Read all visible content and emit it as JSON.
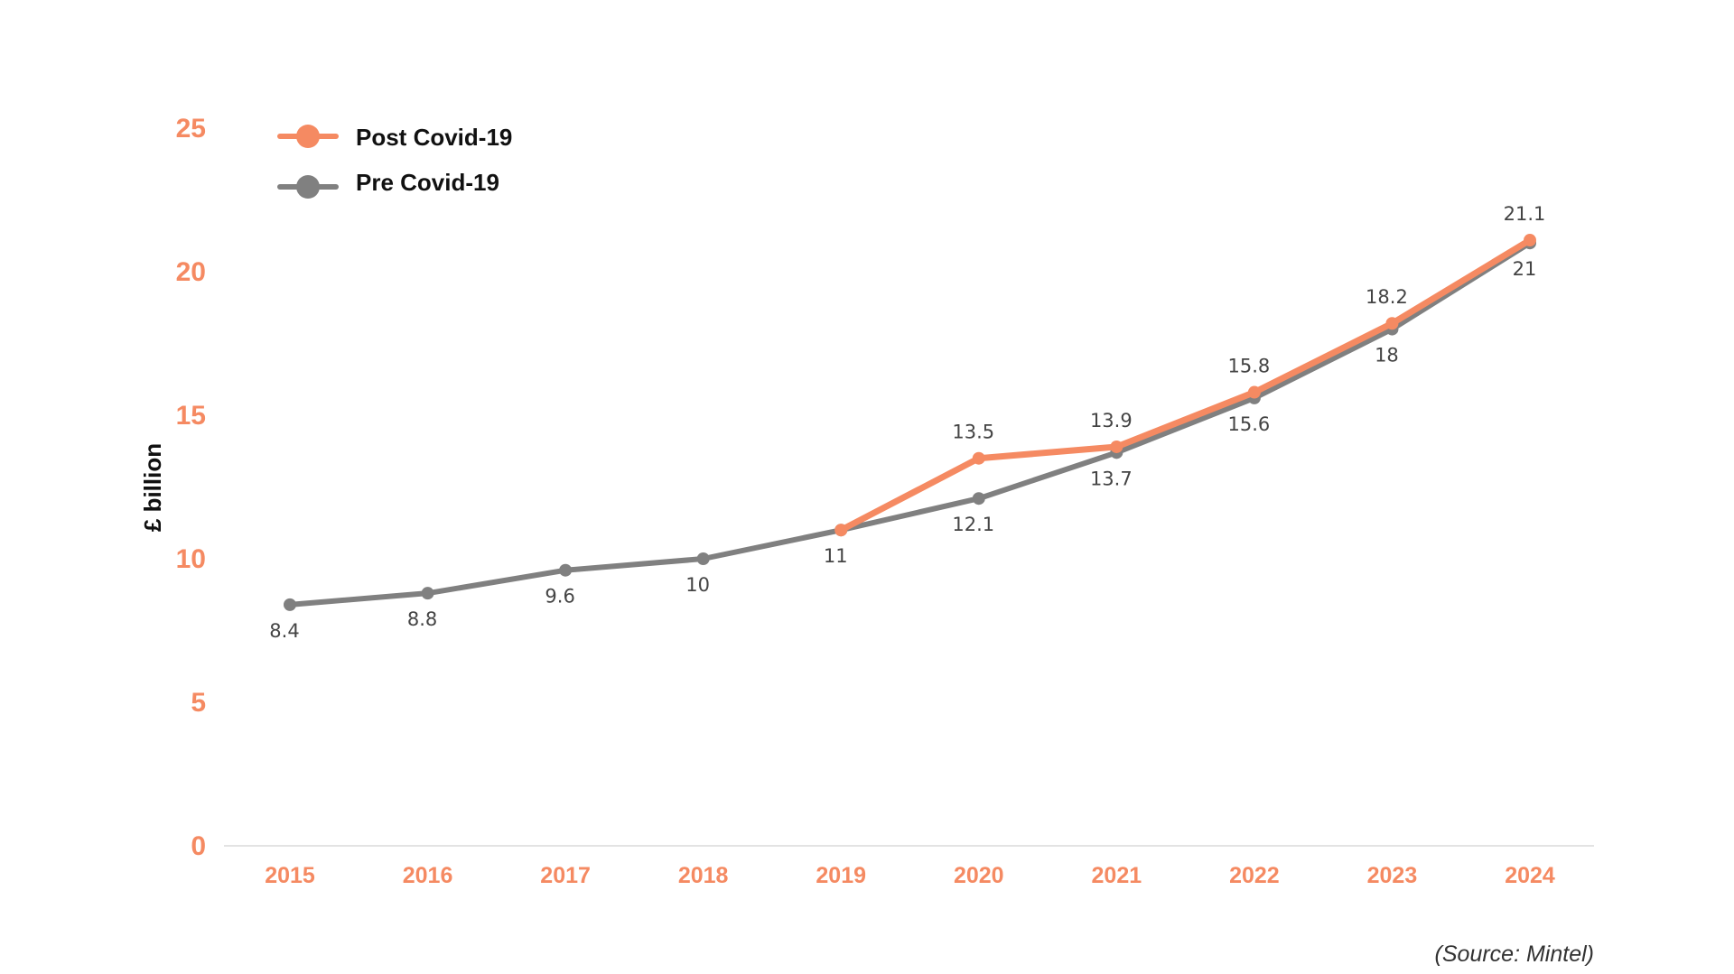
{
  "chart_data": {
    "type": "line",
    "ylabel": "£ billion",
    "ylim": [
      0,
      25
    ],
    "yticks": [
      0,
      5,
      10,
      15,
      20,
      25
    ],
    "categories": [
      "2015",
      "2016",
      "2017",
      "2018",
      "2019",
      "2020",
      "2021",
      "2022",
      "2023",
      "2024"
    ],
    "series": [
      {
        "name": "Post Covid-19",
        "color": "#f58a62",
        "values": [
          null,
          null,
          null,
          null,
          11,
          13.5,
          13.9,
          15.8,
          18.2,
          21.1
        ],
        "labels": [
          "",
          "",
          "",
          "",
          "",
          "13.5",
          "13.9",
          "15.8",
          "18.2",
          "21.1"
        ]
      },
      {
        "name": "Pre Covid-19",
        "color": "#808080",
        "values": [
          8.4,
          8.8,
          9.6,
          10,
          11,
          12.1,
          13.7,
          15.6,
          18,
          21
        ],
        "labels": [
          "8.4",
          "8.8",
          "9.6",
          "10",
          "11",
          "12.1",
          "13.7",
          "15.6",
          "18",
          "21"
        ]
      }
    ],
    "legend_position": "top-left",
    "grid": false,
    "source": "(Source: Mintel)",
    "accent_color": "#f58a62"
  }
}
